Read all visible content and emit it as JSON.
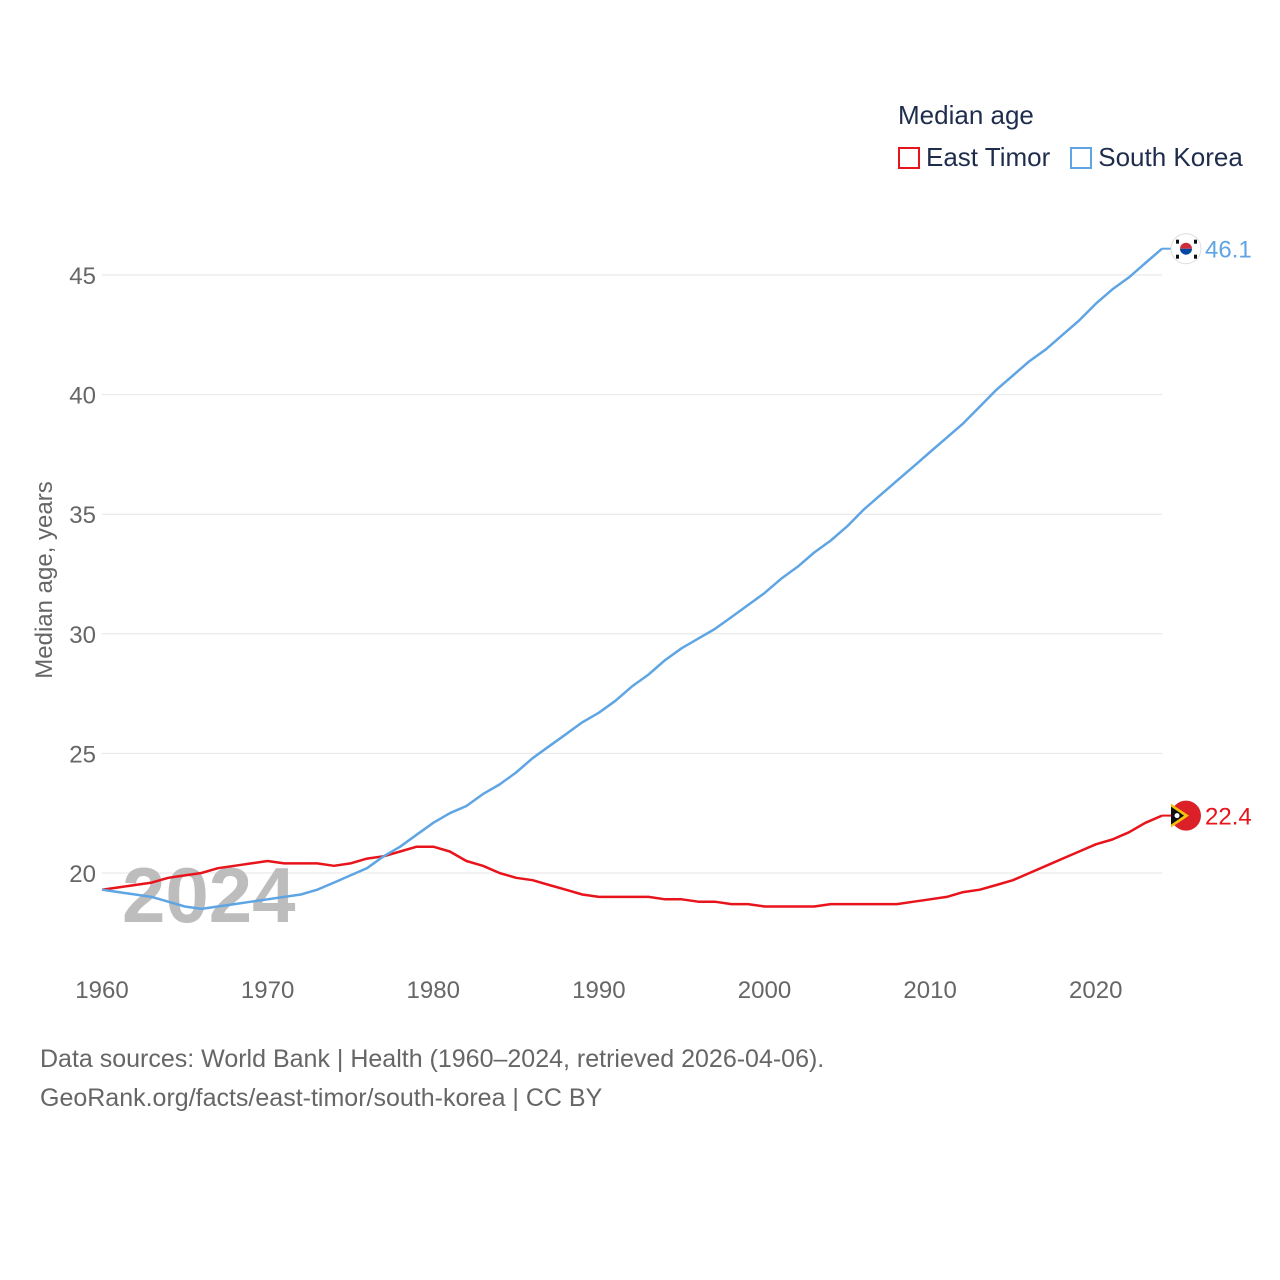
{
  "chart_data": {
    "type": "line",
    "title": "Median age",
    "xlabel": "",
    "ylabel": "Median age, years",
    "xlim": [
      1960,
      2024
    ],
    "ylim": [
      16.5,
      47
    ],
    "x_ticks": [
      1960,
      1970,
      1980,
      1990,
      2000,
      2010,
      2020
    ],
    "y_ticks": [
      20,
      25,
      30,
      35,
      40,
      45
    ],
    "watermark_year": "2024",
    "series": [
      {
        "name": "East Timor",
        "color": "#e8141c",
        "end_label": "22.4",
        "x": [
          1960,
          1961,
          1962,
          1963,
          1964,
          1965,
          1966,
          1967,
          1968,
          1969,
          1970,
          1971,
          1972,
          1973,
          1974,
          1975,
          1976,
          1977,
          1978,
          1979,
          1980,
          1981,
          1982,
          1983,
          1984,
          1985,
          1986,
          1987,
          1988,
          1989,
          1990,
          1991,
          1992,
          1993,
          1994,
          1995,
          1996,
          1997,
          1998,
          1999,
          2000,
          2001,
          2002,
          2003,
          2004,
          2005,
          2006,
          2007,
          2008,
          2009,
          2010,
          2011,
          2012,
          2013,
          2014,
          2015,
          2016,
          2017,
          2018,
          2019,
          2020,
          2021,
          2022,
          2023,
          2024
        ],
        "values": [
          19.3,
          19.4,
          19.5,
          19.6,
          19.8,
          19.9,
          20.0,
          20.2,
          20.3,
          20.4,
          20.5,
          20.4,
          20.4,
          20.4,
          20.3,
          20.4,
          20.6,
          20.7,
          20.9,
          21.1,
          21.1,
          20.9,
          20.5,
          20.3,
          20.0,
          19.8,
          19.7,
          19.5,
          19.3,
          19.1,
          19.0,
          19.0,
          19.0,
          19.0,
          18.9,
          18.9,
          18.8,
          18.8,
          18.7,
          18.7,
          18.6,
          18.6,
          18.6,
          18.6,
          18.7,
          18.7,
          18.7,
          18.7,
          18.7,
          18.8,
          18.9,
          19.0,
          19.2,
          19.3,
          19.5,
          19.7,
          20.0,
          20.3,
          20.6,
          20.9,
          21.2,
          21.4,
          21.7,
          22.1,
          22.4
        ]
      },
      {
        "name": "South Korea",
        "color": "#5fa5e3",
        "end_label": "46.1",
        "x": [
          1960,
          1961,
          1962,
          1963,
          1964,
          1965,
          1966,
          1967,
          1968,
          1969,
          1970,
          1971,
          1972,
          1973,
          1974,
          1975,
          1976,
          1977,
          1978,
          1979,
          1980,
          1981,
          1982,
          1983,
          1984,
          1985,
          1986,
          1987,
          1988,
          1989,
          1990,
          1991,
          1992,
          1993,
          1994,
          1995,
          1996,
          1997,
          1998,
          1999,
          2000,
          2001,
          2002,
          2003,
          2004,
          2005,
          2006,
          2007,
          2008,
          2009,
          2010,
          2011,
          2012,
          2013,
          2014,
          2015,
          2016,
          2017,
          2018,
          2019,
          2020,
          2021,
          2022,
          2023,
          2024
        ],
        "values": [
          19.3,
          19.2,
          19.1,
          19.0,
          18.8,
          18.6,
          18.5,
          18.6,
          18.7,
          18.8,
          18.9,
          19.0,
          19.1,
          19.3,
          19.6,
          19.9,
          20.2,
          20.7,
          21.1,
          21.6,
          22.1,
          22.5,
          22.8,
          23.3,
          23.7,
          24.2,
          24.8,
          25.3,
          25.8,
          26.3,
          26.7,
          27.2,
          27.8,
          28.3,
          28.9,
          29.4,
          29.8,
          30.2,
          30.7,
          31.2,
          31.7,
          32.3,
          32.8,
          33.4,
          33.9,
          34.5,
          35.2,
          35.8,
          36.4,
          37.0,
          37.6,
          38.2,
          38.8,
          39.5,
          40.2,
          40.8,
          41.4,
          41.9,
          42.5,
          43.1,
          43.8,
          44.4,
          44.9,
          45.5,
          46.1
        ]
      }
    ]
  },
  "legend": {
    "title": "Median age",
    "items": [
      {
        "label": "East Timor",
        "color": "#e8141c"
      },
      {
        "label": "South Korea",
        "color": "#5fa5e3"
      }
    ]
  },
  "footer": {
    "line1": "Data sources: World Bank | Health (1960–2024, retrieved 2026-04-06).",
    "line2": "GeoRank.org/facts/east-timor/south-korea | CC BY"
  },
  "colors": {
    "grid": "#e6e6e6",
    "axis_text": "#666666",
    "watermark": "#bdbdbd"
  }
}
